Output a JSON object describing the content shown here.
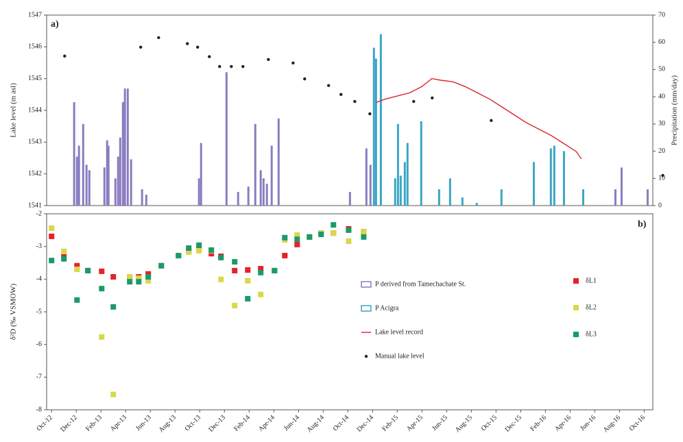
{
  "chart_data": [
    {
      "type": "combo",
      "label": "a)",
      "ylabel": "Lake level (m asl)",
      "y2label": "Precipitation (mm/day)",
      "xlim": [
        -0.4,
        48.7
      ],
      "ylim": [
        1541,
        1547
      ],
      "yticks": [
        1541,
        1542,
        1543,
        1544,
        1545,
        1546,
        1547
      ],
      "y2lim": [
        0,
        70
      ],
      "y2ticks": [
        0,
        10,
        20,
        30,
        40,
        50,
        60,
        70
      ],
      "series": [
        {
          "name": "P derived from Tamechachate St.",
          "type": "bar",
          "axis": "y2",
          "color": "#8a7cc0",
          "x": [
            1.83,
            2.06,
            2.22,
            2.56,
            2.83,
            3.06,
            4.28,
            4.5,
            4.61,
            5.17,
            5.39,
            5.56,
            5.78,
            5.94,
            6.17,
            6.44,
            7.33,
            7.67,
            11.94,
            12.11,
            14.17,
            15.11,
            15.94,
            16.5,
            16.94,
            17.17,
            17.44,
            17.83,
            18.39,
            24.17,
            25.5,
            25.83,
            45.67,
            46.17,
            48.28
          ],
          "values": [
            38,
            18,
            22,
            30,
            15,
            13,
            14,
            24,
            22,
            10,
            18,
            25,
            38,
            43,
            43,
            17,
            6,
            4,
            10,
            23,
            49,
            5,
            7,
            30,
            13,
            10,
            8,
            22,
            32,
            5,
            21,
            15,
            6,
            14,
            6
          ]
        },
        {
          "name": "P Acigra",
          "type": "bar",
          "axis": "y2",
          "color": "#3aa6c4",
          "x": [
            26.11,
            26.28,
            26.67,
            27.83,
            28.06,
            28.28,
            28.61,
            28.83,
            29.94,
            31.39,
            32.28,
            33.28,
            34.44,
            36.44,
            39.06,
            40.44,
            40.72,
            41.5,
            43.06
          ],
          "values": [
            58,
            54,
            63,
            10,
            30,
            11,
            16,
            23,
            31,
            6,
            10,
            3,
            1,
            6,
            16,
            21,
            22,
            20,
            6
          ]
        },
        {
          "name": "Lake level record",
          "type": "line",
          "color": "#d9232a",
          "x": [
            26.3,
            27,
            28,
            29,
            30,
            30.8,
            31.5,
            32.5,
            33.5,
            34.5,
            35.5,
            36.5,
            37.5,
            38.5,
            39.5,
            40.5,
            41.5,
            42.5,
            42.9
          ],
          "values": [
            1544.25,
            1544.35,
            1544.45,
            1544.55,
            1544.75,
            1545.0,
            1544.95,
            1544.9,
            1544.75,
            1544.55,
            1544.35,
            1544.1,
            1543.85,
            1543.6,
            1543.4,
            1543.2,
            1542.95,
            1542.7,
            1542.47
          ]
        },
        {
          "name": "Manual lake level",
          "type": "scatter",
          "color": "#222222",
          "x": [
            1.06,
            7.22,
            8.67,
            11,
            11.83,
            12.78,
            13.61,
            14.56,
            15.5,
            17.56,
            19.56,
            20.5,
            22.44,
            23.44,
            24.56,
            25.78,
            29.33,
            30.83,
            35.61,
            49.5
          ],
          "values": [
            1545.71,
            1545.99,
            1546.29,
            1546.1,
            1545.99,
            1545.69,
            1545.38,
            1545.38,
            1545.38,
            1545.6,
            1545.49,
            1544.99,
            1544.78,
            1544.5,
            1544.28,
            1543.89,
            1544.28,
            1544.39,
            1543.68,
            1541.95
          ]
        }
      ]
    },
    {
      "type": "scatter",
      "label": "b)",
      "ylabel": "δ²D (‰ VSMOW)",
      "xlim": [
        -0.4,
        48.7
      ],
      "xticks": [
        {
          "value": 0,
          "label": "Oct-12"
        },
        {
          "value": 2,
          "label": "Dec-12"
        },
        {
          "value": 4,
          "label": "Feb-13"
        },
        {
          "value": 6,
          "label": "Apr-13"
        },
        {
          "value": 8,
          "label": "Jun-13"
        },
        {
          "value": 10,
          "label": "Aug-13"
        },
        {
          "value": 12,
          "label": "Oct-13"
        },
        {
          "value": 14,
          "label": "Dec-13"
        },
        {
          "value": 16,
          "label": "Feb-14"
        },
        {
          "value": 18,
          "label": "Apr-14"
        },
        {
          "value": 20,
          "label": "Jun-14"
        },
        {
          "value": 22,
          "label": "Aug-14"
        },
        {
          "value": 24,
          "label": "Oct-14"
        },
        {
          "value": 26,
          "label": "Dec-14"
        },
        {
          "value": 28,
          "label": "Feb-15"
        },
        {
          "value": 30,
          "label": "Apr-15"
        },
        {
          "value": 32,
          "label": "Jun-15"
        },
        {
          "value": 34,
          "label": "Aug-15"
        },
        {
          "value": 36,
          "label": "Oct-15"
        },
        {
          "value": 38,
          "label": "Dec-15"
        },
        {
          "value": 40,
          "label": "Feb-16"
        },
        {
          "value": 42,
          "label": "Apr-16"
        },
        {
          "value": 44,
          "label": "Jun-16"
        },
        {
          "value": 46,
          "label": "Aug-16"
        },
        {
          "value": 48,
          "label": "Oct-16"
        }
      ],
      "ylim": [
        -8,
        -2
      ],
      "yticks": [
        -2,
        -3,
        -4,
        -5,
        -6,
        -7,
        -8
      ],
      "x": [
        0,
        1,
        2.06,
        2.94,
        4.06,
        5,
        6.33,
        7.06,
        7.83,
        8.89,
        10.28,
        11.11,
        11.94,
        12.94,
        13.72,
        14.83,
        15.89,
        16.94,
        18.06,
        18.89,
        19.89,
        20.89,
        21.83,
        22.83,
        24.06,
        25.28
      ],
      "series": [
        {
          "name": "δL1",
          "color": "#e8202a",
          "values": [
            -2.69,
            -3.32,
            -3.59,
            -3.74,
            -3.76,
            -3.93,
            -3.93,
            -3.93,
            -3.84,
            -3.59,
            -3.28,
            -3.13,
            -3.05,
            -3.22,
            -3.3,
            -3.74,
            -3.72,
            -3.68,
            -3.74,
            -3.28,
            -2.94,
            -2.71,
            -2.59,
            -2.59,
            -2.46,
            -2.55
          ]
        },
        {
          "name": "δL2",
          "color": "#d8d84a",
          "values": [
            -2.44,
            -3.15,
            -3.7,
            -3.74,
            -5.77,
            -7.53,
            -3.93,
            -3.97,
            -4.05,
            -3.59,
            -3.28,
            -3.17,
            -3.13,
            -3.13,
            -4.01,
            -4.81,
            -4.05,
            -4.47,
            -3.74,
            -2.8,
            -2.65,
            -2.71,
            -2.59,
            -2.59,
            -2.84,
            -2.55
          ]
        },
        {
          "name": "δL3",
          "color": "#1a9a6a",
          "values": [
            -3.43,
            -3.38,
            -4.64,
            -3.74,
            -4.29,
            -4.85,
            -4.08,
            -4.08,
            -3.93,
            -3.59,
            -3.28,
            -3.05,
            -2.96,
            -3.11,
            -3.34,
            -3.47,
            -4.6,
            -3.8,
            -3.74,
            -2.73,
            -2.78,
            -2.71,
            -2.63,
            -2.34,
            -2.5,
            -2.71
          ]
        }
      ]
    }
  ]
}
